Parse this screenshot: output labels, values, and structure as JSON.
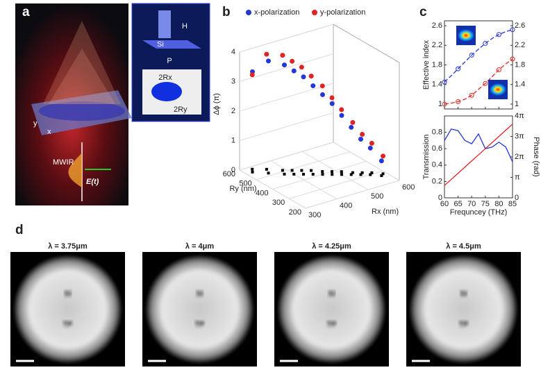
{
  "panel_a": {
    "label": "a",
    "height": "H",
    "material": "Si",
    "period": "P",
    "rx": "2Rx",
    "ry": "2Ry",
    "source": "MWIR",
    "field": "E(t)",
    "x": "x",
    "y": "y"
  },
  "panel_b": {
    "label": "b",
    "type": "scatter3d",
    "xlabel": "Rx (nm)",
    "ylabel": "Ry (nm)",
    "zlabel": "Δϕ (π)",
    "xlim": [
      300,
      600
    ],
    "xticks": [
      300,
      400,
      500,
      600
    ],
    "ylim": [
      200,
      600
    ],
    "yticks": [
      200,
      300,
      400,
      500,
      600
    ],
    "zlim": [
      0,
      4
    ],
    "zticks": [
      0,
      1,
      2,
      3,
      4
    ],
    "series": [
      {
        "name": "x-polarization",
        "color": "#2436d6",
        "rx": [
          320,
          350,
          380,
          400,
          420,
          440,
          460,
          480,
          500,
          520,
          540,
          560,
          580
        ],
        "ry": [
          560,
          520,
          480,
          460,
          440,
          420,
          400,
          380,
          360,
          340,
          320,
          300,
          270
        ],
        "values": [
          3.4,
          3.8,
          3.7,
          3.5,
          3.3,
          3.0,
          2.7,
          2.4,
          2.0,
          1.6,
          1.2,
          0.9,
          0.5
        ]
      },
      {
        "name": "y-polarization",
        "color": "#e02424",
        "rx": [
          330,
          360,
          390,
          410,
          430,
          450,
          470,
          490,
          510,
          530,
          550,
          570,
          590
        ],
        "ry": [
          580,
          550,
          510,
          490,
          470,
          450,
          420,
          400,
          380,
          350,
          330,
          310,
          280
        ],
        "values": [
          3.2,
          3.9,
          3.9,
          3.7,
          3.5,
          3.2,
          2.9,
          2.5,
          2.1,
          1.7,
          1.3,
          1.0,
          0.6
        ]
      }
    ]
  },
  "panel_c": {
    "label": "c",
    "x": [
      60,
      62.5,
      65,
      67.5,
      70,
      72.5,
      75,
      77.5,
      80,
      82.5,
      85
    ],
    "xlim": [
      60,
      85
    ],
    "xticks": [
      60,
      65,
      70,
      75,
      80,
      85
    ],
    "xlabel": "Frequncey (THz)",
    "top": {
      "type": "line",
      "ylabel": "Effective index",
      "ylim": [
        0.9,
        2.7
      ],
      "yticks": [
        1,
        1.4,
        1.8,
        2.2,
        2.6
      ],
      "y2lim": [
        0.9,
        2.7
      ],
      "y2ticks": [
        1,
        1.4,
        1.8,
        2.2,
        2.6
      ],
      "series": [
        {
          "color": "#2436d6",
          "values": [
            1.45,
            1.58,
            1.72,
            1.86,
            2.0,
            2.12,
            2.24,
            2.34,
            2.42,
            2.48,
            2.52
          ]
        },
        {
          "color": "#e02424",
          "axis": "y2",
          "values": [
            1.0,
            1.02,
            1.05,
            1.1,
            1.18,
            1.3,
            1.42,
            1.56,
            1.7,
            1.82,
            1.92
          ]
        }
      ]
    },
    "bottom": {
      "type": "line",
      "ylabel": "Transmission",
      "y2label": "Phase (rad)",
      "ylim": [
        0,
        1
      ],
      "yticks": [
        0,
        0.2,
        0.4,
        0.6,
        0.8
      ],
      "y2lim": [
        0,
        4
      ],
      "y2ticks": [
        0,
        {
          "value": 1,
          "label": "π"
        },
        {
          "value": 2,
          "label": "2π"
        },
        {
          "value": 3,
          "label": "3π"
        },
        {
          "value": 4,
          "label": "4π"
        }
      ],
      "series": [
        {
          "color": "#2436d6",
          "values": [
            0.7,
            0.84,
            0.82,
            0.7,
            0.66,
            0.78,
            0.6,
            0.62,
            0.68,
            0.62,
            0.44
          ]
        },
        {
          "color": "#e02424",
          "axis": "y2",
          "values": [
            0.6,
            0.9,
            1.2,
            1.5,
            1.8,
            2.1,
            2.4,
            2.7,
            3.0,
            3.3,
            3.6
          ]
        }
      ]
    }
  },
  "panel_d": {
    "label": "d",
    "images": [
      {
        "title": "λ = 3.75μm",
        "text": [
          "SI",
          "TP"
        ]
      },
      {
        "title": "λ = 4μm",
        "text": [
          "SI",
          "TP"
        ]
      },
      {
        "title": "λ = 4.25μm",
        "text": [
          "SI",
          "TP"
        ]
      },
      {
        "title": "λ = 4.5μm",
        "text": [
          "SI",
          "TP"
        ]
      }
    ]
  }
}
